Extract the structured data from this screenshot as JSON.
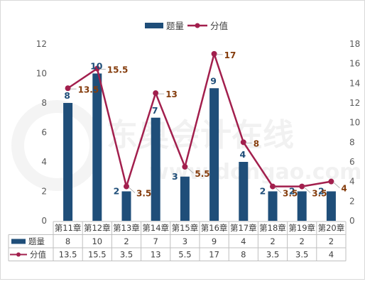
{
  "chart_data": {
    "type": "bar",
    "categories": [
      "第11章",
      "第12章",
      "第13章",
      "第14章",
      "第15章",
      "第16章",
      "第17章",
      "第18章",
      "第19章",
      "第20章"
    ],
    "series": [
      {
        "name": "题量",
        "kind": "bar",
        "axis": "left",
        "values": [
          8,
          10,
          2,
          7,
          3,
          9,
          4,
          2,
          2,
          2
        ]
      },
      {
        "name": "分值",
        "kind": "line",
        "axis": "right",
        "values": [
          13.5,
          15.5,
          3.5,
          13,
          5.5,
          17,
          8,
          3.5,
          3.5,
          4
        ]
      }
    ],
    "bar_labels": [
      "8",
      "10",
      "2",
      "7",
      "3",
      "9",
      "4",
      "2",
      "2",
      "2"
    ],
    "line_labels": [
      "13.5",
      "15.5",
      "3.5",
      "13",
      "5.5",
      "17",
      "8",
      "3.5",
      "3.5",
      "4"
    ],
    "y_left": {
      "ylim": [
        0,
        12
      ],
      "ticks": [
        "0",
        "2",
        "4",
        "6",
        "8",
        "10",
        "12"
      ]
    },
    "y_right": {
      "ylim": [
        0,
        18
      ],
      "ticks": [
        "0",
        "2",
        "4",
        "6",
        "8",
        "10",
        "12",
        "14",
        "16",
        "18"
      ]
    },
    "legend": {
      "placement": "top-center",
      "items": [
        "题量",
        "分值"
      ]
    },
    "data_table": true,
    "grid": false,
    "colors": {
      "bar": "#1F4E79",
      "line": "#A21F4D",
      "bar_label": "#1F4E79",
      "line_label": "#843C0C",
      "frame": "#D9D9D9"
    },
    "watermark": "东奥会计在线 www.dongao.com"
  }
}
